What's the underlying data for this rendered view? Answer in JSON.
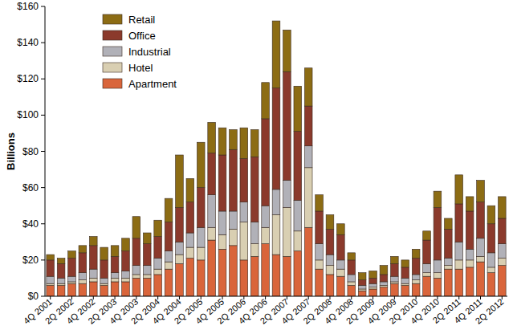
{
  "chart_data": {
    "type": "bar",
    "stacked": true,
    "legend": "upper left",
    "y_label": "Billions",
    "categories": [
      "4Q 2001",
      null,
      "2Q 2002",
      null,
      "4Q 2002",
      null,
      "2Q 2003",
      null,
      "4Q 2003",
      null,
      "2Q 2004",
      null,
      "4Q 2004",
      null,
      "2Q 2005",
      null,
      "4Q 2005",
      null,
      "2Q 2006",
      null,
      "4Q 2006",
      null,
      "2Q 2007",
      null,
      "4Q 2007",
      null,
      "2Q 2008",
      null,
      "4Q 2008",
      null,
      "2Q 2009",
      null,
      "4Q 2009",
      null,
      "2Q 2010",
      null,
      "4Q 2010",
      null,
      "2Q 2011",
      null,
      "4Q 2011",
      null,
      "2Q 2012"
    ],
    "series": [
      {
        "name": "Retail",
        "color": "#8c6c14",
        "values": [
          3,
          3,
          4,
          4,
          5,
          7,
          6,
          7,
          12,
          6,
          9,
          13,
          29,
          13,
          25,
          17,
          15,
          11,
          17,
          15,
          20,
          37,
          23,
          25,
          21,
          9,
          8,
          6,
          4,
          4,
          4,
          5,
          4,
          4,
          5,
          5,
          9,
          6,
          16,
          8,
          12,
          10,
          12
        ]
      },
      {
        "name": "Office",
        "color": "#8b3a2c",
        "values": [
          9,
          8,
          10,
          11,
          13,
          10,
          9,
          11,
          15,
          12,
          12,
          16,
          19,
          17,
          22,
          23,
          31,
          34,
          24,
          36,
          48,
          56,
          60,
          38,
          22,
          18,
          14,
          14,
          8,
          3,
          3,
          4,
          7,
          6,
          9,
          13,
          29,
          16,
          21,
          21,
          20,
          16,
          14
        ]
      },
      {
        "name": "Industrial",
        "color": "#b1b1b8",
        "values": [
          4,
          3,
          3,
          4,
          5,
          3,
          3,
          4,
          5,
          5,
          6,
          6,
          7,
          8,
          11,
          18,
          13,
          10,
          11,
          12,
          12,
          14,
          15,
          17,
          12,
          9,
          6,
          5,
          4,
          2,
          2,
          2,
          3,
          3,
          3,
          5,
          7,
          4,
          10,
          6,
          10,
          8,
          8
        ]
      },
      {
        "name": "Hotel",
        "color": "#d9cfb2",
        "values": [
          1,
          1,
          1,
          2,
          2,
          1,
          2,
          2,
          2,
          2,
          3,
          4,
          5,
          6,
          7,
          7,
          8,
          9,
          21,
          7,
          9,
          22,
          27,
          11,
          33,
          5,
          5,
          4,
          2,
          1,
          1,
          1,
          1,
          1,
          2,
          2,
          3,
          2,
          5,
          4,
          3,
          3,
          4
        ]
      },
      {
        "name": "Apartment",
        "color": "#d9653b",
        "values": [
          6,
          6,
          7,
          7,
          8,
          6,
          8,
          8,
          10,
          10,
          12,
          15,
          18,
          21,
          20,
          31,
          26,
          28,
          20,
          22,
          29,
          23,
          22,
          25,
          38,
          15,
          12,
          11,
          6,
          3,
          4,
          5,
          7,
          6,
          7,
          11,
          10,
          15,
          15,
          16,
          19,
          13,
          17
        ]
      }
    ],
    "ylim": [
      0,
      160
    ],
    "yticks": [
      {
        "value": 0,
        "label": "$0"
      },
      {
        "value": 20,
        "label": "$20"
      },
      {
        "value": 40,
        "label": "$40"
      },
      {
        "value": 60,
        "label": "$60"
      },
      {
        "value": 80,
        "label": "$80"
      },
      {
        "value": 100,
        "label": "$100"
      },
      {
        "value": 120,
        "label": "$120"
      },
      {
        "value": 140,
        "label": "$140"
      },
      {
        "value": 160,
        "label": "$160"
      }
    ],
    "grid": false
  }
}
